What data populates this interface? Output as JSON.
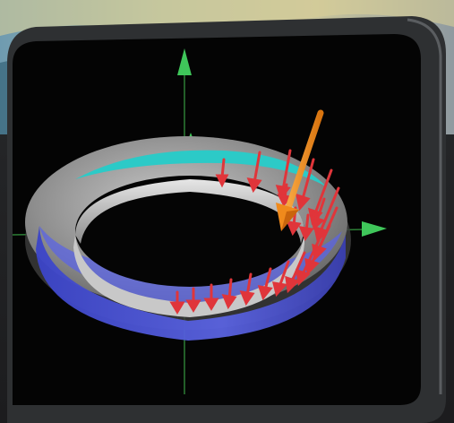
{
  "scene": {
    "viewport": {
      "background": "#050505",
      "bezel_color": "#2d2f31"
    },
    "axes": {
      "color": "#2f8a3a",
      "arrow_color": "#3fc65a",
      "directions": [
        "up",
        "right",
        "back"
      ]
    },
    "ring": {
      "outer_color": "#9a9a9a",
      "inner_color": "#c8c8c8",
      "highlight_band_color": "#2ccac7",
      "lower_band_color": "#4d55d6"
    },
    "load_arrows": {
      "color": "#e0353a",
      "count": 21
    },
    "resultant_arrow": {
      "color": "#f08a1c"
    }
  }
}
